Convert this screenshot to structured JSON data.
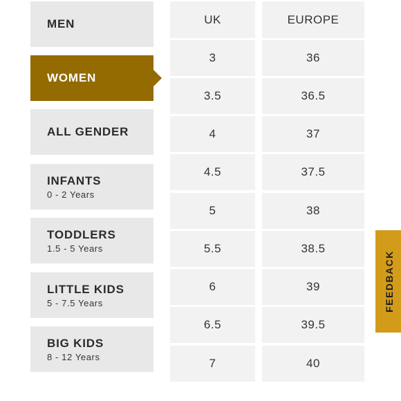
{
  "categories": [
    {
      "label": "MEN",
      "sub": ""
    },
    {
      "label": "WOMEN",
      "sub": ""
    },
    {
      "label": "ALL GENDER",
      "sub": ""
    },
    {
      "label": "INFANTS",
      "sub": "0 - 2 Years"
    },
    {
      "label": "TODDLERS",
      "sub": "1.5 - 5 Years"
    },
    {
      "label": "LITTLE KIDS",
      "sub": "5 - 7.5 Years"
    },
    {
      "label": "BIG KIDS",
      "sub": "8 - 12 Years"
    }
  ],
  "active_category": "WOMEN",
  "table": {
    "headers": [
      "UK",
      "EUROPE"
    ],
    "rows": [
      [
        "3",
        "36"
      ],
      [
        "3.5",
        "36.5"
      ],
      [
        "4",
        "37"
      ],
      [
        "4.5",
        "37.5"
      ],
      [
        "5",
        "38"
      ],
      [
        "5.5",
        "38.5"
      ],
      [
        "6",
        "39"
      ],
      [
        "6.5",
        "39.5"
      ],
      [
        "7",
        "40"
      ]
    ]
  },
  "feedback": {
    "label": "FEEDBACK"
  },
  "colors": {
    "accent": "#946b00",
    "feedback": "#d39b1a",
    "tile": "#e8e8e8",
    "cell": "#f2f2f2"
  }
}
